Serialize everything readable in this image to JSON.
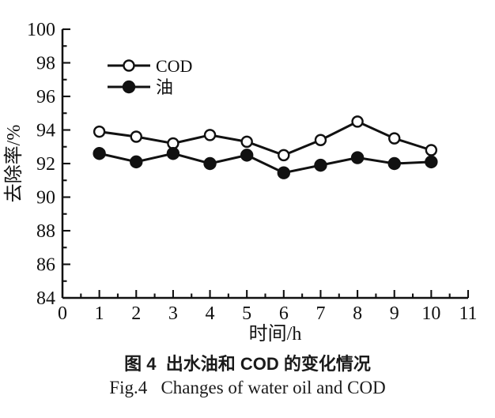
{
  "figure": {
    "caption_zh": "图 4  出水油和 COD 的变化情况",
    "caption_en": "Fig.4   Changes of water oil and COD"
  },
  "chart_data": {
    "type": "line",
    "title": "",
    "xlabel": "时间/h",
    "ylabel": "去除率/%",
    "x": [
      1,
      2,
      3,
      4,
      5,
      6,
      7,
      8,
      9,
      10
    ],
    "series": [
      {
        "name": "COD",
        "marker": "open-circle",
        "values": [
          93.9,
          93.6,
          93.2,
          93.7,
          93.3,
          92.5,
          93.4,
          94.5,
          93.5,
          92.8
        ]
      },
      {
        "name": "油",
        "marker": "filled-circle",
        "values": [
          92.6,
          92.1,
          92.6,
          92.0,
          92.5,
          91.45,
          91.9,
          92.35,
          92.0,
          92.1
        ]
      }
    ],
    "xlim": [
      0,
      11
    ],
    "ylim": [
      84,
      100
    ],
    "x_major_ticks": [
      0,
      1,
      2,
      3,
      4,
      5,
      6,
      7,
      8,
      9,
      10,
      11
    ],
    "y_major_ticks": [
      84,
      86,
      88,
      90,
      92,
      94,
      96,
      98,
      100
    ],
    "x_minor_step": 0.5,
    "y_minor_step": 1,
    "grid": false,
    "legend_position": "upper-left-inside",
    "colors": {
      "line": "#111111",
      "background": "#ffffff",
      "open_marker_fill": "#ffffff"
    }
  }
}
